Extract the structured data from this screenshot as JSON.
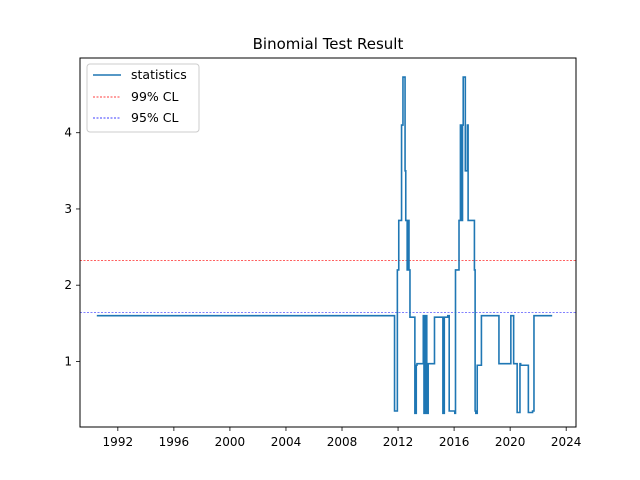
{
  "chart_data": {
    "type": "line",
    "title": "Binomial Test Result",
    "xlabel": "",
    "ylabel": "",
    "xlim": [
      1989.3,
      2024.7
    ],
    "ylim": [
      0.14,
      4.98
    ],
    "xticks": [
      1992,
      1996,
      2000,
      2004,
      2008,
      2012,
      2016,
      2020,
      2024
    ],
    "yticks": [
      1,
      2,
      3,
      4
    ],
    "grid": false,
    "legend": {
      "position": "top-left"
    },
    "colors": {
      "statistics": "#1f77b4",
      "cl99": "#ff0000",
      "cl95": "#0000ff"
    },
    "series": [
      {
        "name": "statistics",
        "style": "step",
        "x": [
          1990.5,
          2011.7,
          2011.75,
          2011.95,
          2012.0,
          2012.05,
          2012.25,
          2012.35,
          2012.4,
          2012.5,
          2012.55,
          2012.65,
          2012.7,
          2012.78,
          2012.85,
          2013.2,
          2013.3,
          2013.35,
          2013.8,
          2013.85,
          2013.95,
          2014.05,
          2014.15,
          2014.2,
          2014.6,
          2014.65,
          2015.2,
          2015.3,
          2015.5,
          2015.55,
          2015.65,
          2015.7,
          2016.05,
          2016.1,
          2016.35,
          2016.45,
          2016.5,
          2016.6,
          2016.65,
          2016.75,
          2016.8,
          2016.95,
          2017.0,
          2017.05,
          2017.45,
          2017.5,
          2017.55,
          2017.65,
          2017.7,
          2017.95,
          2018.05,
          2019.2,
          2020.05,
          2020.25,
          2020.5,
          2020.7,
          2020.75,
          2021.3,
          2021.35,
          2021.6,
          2021.7,
          2023.0
        ],
        "y": [
          1.6,
          1.6,
          0.35,
          2.2,
          2.2,
          2.85,
          4.1,
          4.73,
          4.73,
          3.5,
          2.85,
          2.2,
          2.85,
          2.2,
          1.58,
          0.32,
          0.95,
          0.97,
          1.6,
          0.32,
          1.6,
          0.32,
          0.97,
          0.97,
          1.58,
          1.58,
          0.32,
          1.58,
          1.58,
          1.6,
          0.35,
          0.35,
          0.32,
          2.2,
          2.85,
          4.1,
          2.85,
          4.1,
          4.73,
          4.73,
          3.5,
          4.1,
          2.85,
          2.85,
          2.2,
          0.35,
          0.32,
          0.95,
          0.95,
          1.6,
          1.6,
          0.97,
          1.6,
          0.97,
          0.33,
          0.97,
          0.95,
          0.33,
          0.33,
          0.35,
          1.6,
          1.6
        ]
      },
      {
        "name": "99% CL",
        "style": "hline",
        "value": 2.326
      },
      {
        "name": "95% CL",
        "style": "hline",
        "value": 1.645
      }
    ]
  }
}
